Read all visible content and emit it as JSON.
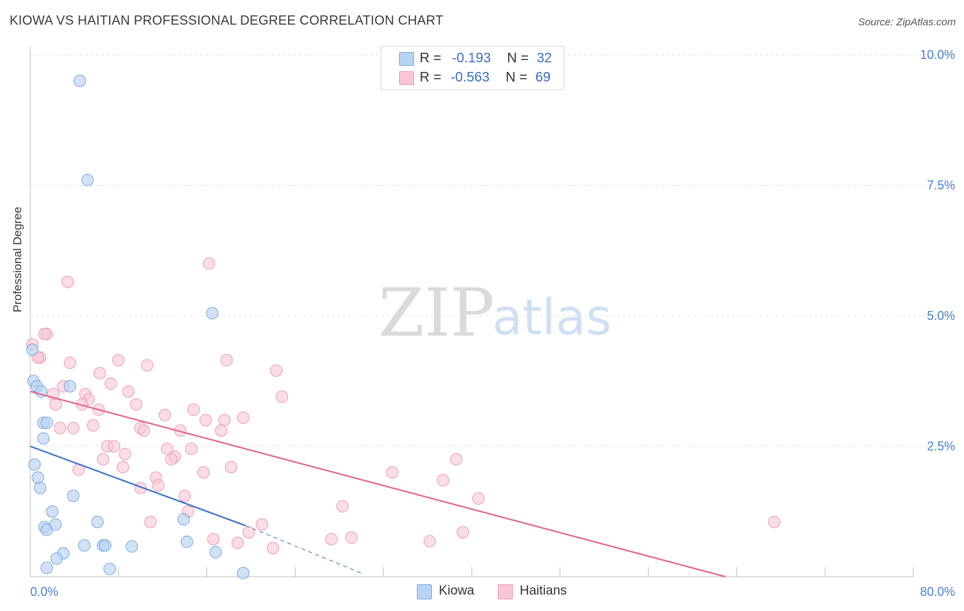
{
  "title": "KIOWA VS HAITIAN PROFESSIONAL DEGREE CORRELATION CHART",
  "source": "Source: ZipAtlas.com",
  "watermark": {
    "zip": "ZIP",
    "atlas": "atlas"
  },
  "legend": {
    "kiowa": {
      "r_label": "R =",
      "r_value": "-0.193",
      "n_label": "N =",
      "n_value": "32"
    },
    "haitians": {
      "r_label": "R =",
      "r_value": "-0.563",
      "n_label": "N =",
      "n_value": "69"
    }
  },
  "colors": {
    "kiowa_fill": "#b8d3f3",
    "kiowa_stroke": "#7aa7de",
    "kiowa_line": "#3a72c9",
    "haitians_fill": "#f9c6d6",
    "haitians_stroke": "#ec9bb6",
    "haitians_line": "#e0688f",
    "tick_text": "#4a7fd0",
    "grid": "#e2e2e2"
  },
  "chart_data": {
    "type": "scatter",
    "title": "KIOWA VS HAITIAN PROFESSIONAL DEGREE CORRELATION CHART",
    "xlabel": "",
    "ylabel": "Professional Degree",
    "xlim": [
      0,
      80
    ],
    "ylim": [
      0,
      10.2
    ],
    "x_tick_labels": [
      "0.0%",
      "80.0%"
    ],
    "y_tick_labels": [
      "2.5%",
      "5.0%",
      "7.5%",
      "10.0%"
    ],
    "y_ticks": [
      2.5,
      5.0,
      7.5,
      10.0
    ],
    "legend_position": "bottom-center",
    "series": [
      {
        "name": "Kiowa",
        "r": -0.193,
        "n": 32,
        "trend": {
          "x": [
            0,
            19.5
          ],
          "y": [
            2.5,
            0.98
          ],
          "dashed_to": [
            30,
            0.07
          ]
        },
        "points": [
          [
            4.5,
            9.5
          ],
          [
            5.2,
            7.6
          ],
          [
            16.5,
            5.05
          ],
          [
            0.2,
            4.35
          ],
          [
            0.3,
            3.75
          ],
          [
            0.6,
            3.65
          ],
          [
            1.0,
            3.55
          ],
          [
            3.6,
            3.65
          ],
          [
            1.2,
            2.95
          ],
          [
            1.5,
            2.95
          ],
          [
            1.2,
            2.65
          ],
          [
            0.4,
            2.15
          ],
          [
            0.7,
            1.9
          ],
          [
            0.9,
            1.7
          ],
          [
            3.9,
            1.55
          ],
          [
            2.0,
            1.25
          ],
          [
            1.3,
            0.95
          ],
          [
            1.5,
            0.9
          ],
          [
            2.3,
            1.0
          ],
          [
            6.1,
            1.05
          ],
          [
            13.9,
            1.1
          ],
          [
            4.9,
            0.6
          ],
          [
            6.6,
            0.6
          ],
          [
            6.8,
            0.6
          ],
          [
            9.2,
            0.58
          ],
          [
            14.2,
            0.67
          ],
          [
            3.0,
            0.45
          ],
          [
            2.4,
            0.35
          ],
          [
            1.5,
            0.17
          ],
          [
            7.2,
            0.15
          ],
          [
            16.8,
            0.47
          ],
          [
            19.3,
            0.07
          ]
        ]
      },
      {
        "name": "Haitians",
        "r": -0.563,
        "n": 69,
        "trend": {
          "x": [
            0,
            63
          ],
          "y": [
            3.55,
            0.0
          ]
        },
        "points": [
          [
            0.2,
            4.45
          ],
          [
            16.2,
            6.0
          ],
          [
            3.4,
            5.65
          ],
          [
            1.5,
            4.65
          ],
          [
            1.3,
            4.65
          ],
          [
            0.9,
            4.2
          ],
          [
            0.7,
            4.2
          ],
          [
            3.6,
            4.1
          ],
          [
            8.0,
            4.15
          ],
          [
            10.6,
            4.05
          ],
          [
            17.8,
            4.15
          ],
          [
            22.3,
            3.95
          ],
          [
            6.3,
            3.9
          ],
          [
            7.3,
            3.7
          ],
          [
            3.0,
            3.65
          ],
          [
            2.1,
            3.5
          ],
          [
            5.0,
            3.5
          ],
          [
            8.9,
            3.55
          ],
          [
            22.8,
            3.45
          ],
          [
            5.3,
            3.4
          ],
          [
            4.7,
            3.3
          ],
          [
            2.3,
            3.3
          ],
          [
            9.6,
            3.3
          ],
          [
            6.2,
            3.2
          ],
          [
            14.8,
            3.2
          ],
          [
            12.2,
            3.1
          ],
          [
            15.9,
            3.0
          ],
          [
            17.6,
            3.0
          ],
          [
            19.3,
            3.05
          ],
          [
            2.7,
            2.85
          ],
          [
            3.9,
            2.85
          ],
          [
            5.7,
            2.9
          ],
          [
            10.0,
            2.85
          ],
          [
            10.3,
            2.8
          ],
          [
            13.6,
            2.8
          ],
          [
            17.3,
            2.8
          ],
          [
            7.0,
            2.5
          ],
          [
            7.6,
            2.5
          ],
          [
            12.4,
            2.45
          ],
          [
            14.6,
            2.45
          ],
          [
            8.6,
            2.35
          ],
          [
            13.1,
            2.3
          ],
          [
            12.8,
            2.25
          ],
          [
            6.6,
            2.25
          ],
          [
            8.4,
            2.1
          ],
          [
            18.2,
            2.1
          ],
          [
            38.6,
            2.25
          ],
          [
            4.4,
            2.05
          ],
          [
            15.7,
            2.0
          ],
          [
            32.8,
            2.0
          ],
          [
            11.4,
            1.9
          ],
          [
            37.4,
            1.85
          ],
          [
            10.0,
            1.7
          ],
          [
            11.6,
            1.75
          ],
          [
            14.0,
            1.55
          ],
          [
            40.6,
            1.5
          ],
          [
            28.3,
            1.35
          ],
          [
            14.3,
            1.25
          ],
          [
            10.9,
            1.05
          ],
          [
            21.0,
            1.0
          ],
          [
            67.4,
            1.05
          ],
          [
            39.2,
            0.85
          ],
          [
            19.8,
            0.85
          ],
          [
            16.6,
            0.72
          ],
          [
            18.8,
            0.65
          ],
          [
            27.3,
            0.72
          ],
          [
            29.1,
            0.75
          ],
          [
            36.2,
            0.68
          ],
          [
            22.0,
            0.55
          ]
        ]
      }
    ]
  },
  "bottom_legend": [
    "Kiowa",
    "Haitians"
  ]
}
